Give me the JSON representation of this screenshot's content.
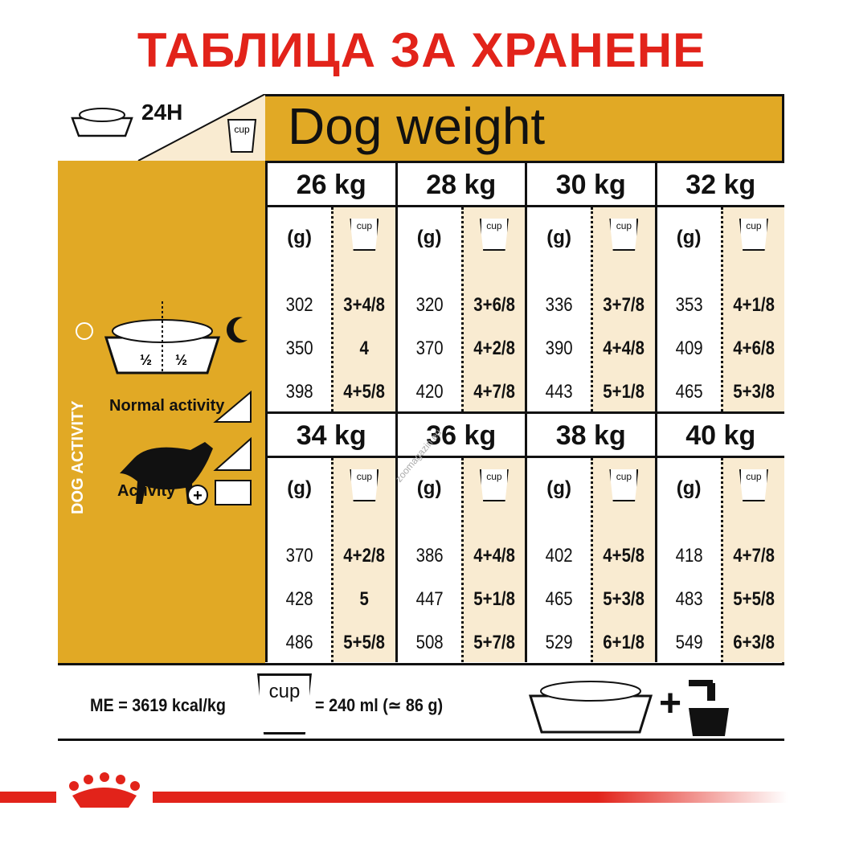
{
  "title": "ТАБЛИЦА ЗА ХРАНЕНЕ",
  "header": {
    "duration": "24H",
    "cup_label": "cup",
    "dog_weight": "Dog weight"
  },
  "left_panel": {
    "dog_activity": "DOG ACTIVITY",
    "normal_activity": "Normal activity",
    "activity": "Activity",
    "half": "½"
  },
  "column_headers": {
    "grams": "(g)",
    "cup": "cup"
  },
  "blocks": [
    {
      "weight": "26 kg",
      "grams": [
        "302",
        "350",
        "398"
      ],
      "cups": [
        "3+4/8",
        "4",
        "4+5/8"
      ]
    },
    {
      "weight": "28 kg",
      "grams": [
        "320",
        "370",
        "420"
      ],
      "cups": [
        "3+6/8",
        "4+2/8",
        "4+7/8"
      ]
    },
    {
      "weight": "30 kg",
      "grams": [
        "336",
        "390",
        "443"
      ],
      "cups": [
        "3+7/8",
        "4+4/8",
        "5+1/8"
      ]
    },
    {
      "weight": "32 kg",
      "grams": [
        "353",
        "409",
        "465"
      ],
      "cups": [
        "4+1/8",
        "4+6/8",
        "5+3/8"
      ]
    },
    {
      "weight": "34 kg",
      "grams": [
        "370",
        "428",
        "486"
      ],
      "cups": [
        "4+2/8",
        "5",
        "5+5/8"
      ]
    },
    {
      "weight": "36 kg",
      "grams": [
        "386",
        "447",
        "508"
      ],
      "cups": [
        "4+4/8",
        "5+1/8",
        "5+7/8"
      ]
    },
    {
      "weight": "38 kg",
      "grams": [
        "402",
        "465",
        "529"
      ],
      "cups": [
        "4+5/8",
        "5+3/8",
        "6+1/8"
      ]
    },
    {
      "weight": "40 kg",
      "grams": [
        "418",
        "483",
        "549"
      ],
      "cups": [
        "4+7/8",
        "5+5/8",
        "6+3/8"
      ]
    }
  ],
  "footer": {
    "me": "ME = 3619 kcal/kg",
    "cup_label": "cup",
    "cup_volume": "= 240 ml (≃ 86 g)",
    "plus": "+"
  },
  "watermark": "zoomagazin.eu",
  "colors": {
    "red": "#e2231a",
    "gold": "#e1a925",
    "cream": "#f9ebd1"
  }
}
